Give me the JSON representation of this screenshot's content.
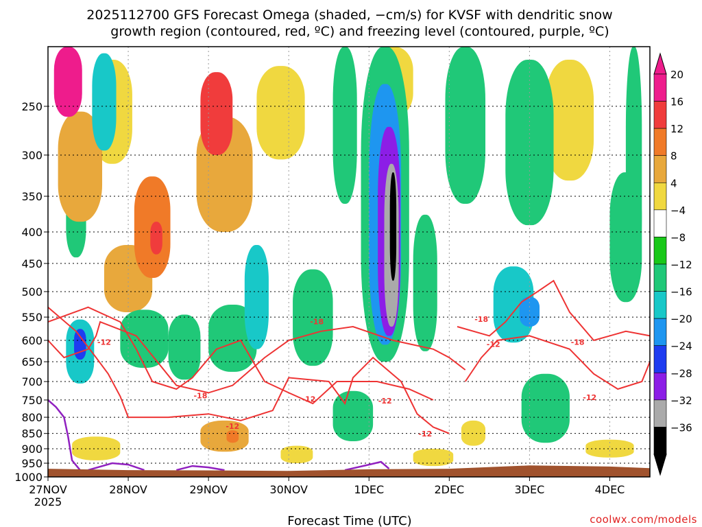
{
  "title": {
    "line1": "2025112700 GFS Forecast Omega (shaded, −cm/s) for KVSF with dendritic snow",
    "line2": "growth region (contoured, red, ºC) and freezing level (contoured, purple, ºC)"
  },
  "credit": "coolwx.com/models",
  "chart_data": {
    "type": "heatmap",
    "title": "2025112700 GFS Forecast Omega (shaded, −cm/s) for KVSF with dendritic snow growth region (contoured, red, ºC) and freezing level (contoured, purple, ºC)",
    "xlabel": "Forecast Time (UTC)",
    "ylabel": "",
    "x_ticks": [
      {
        "label": "27NOV",
        "sub": "2025",
        "day": 0
      },
      {
        "label": "28NOV",
        "day": 1
      },
      {
        "label": "29NOV",
        "day": 2
      },
      {
        "label": "30NOV",
        "day": 3
      },
      {
        "label": "1DEC",
        "day": 4
      },
      {
        "label": "2DEC",
        "day": 5
      },
      {
        "label": "3DEC",
        "day": 6
      },
      {
        "label": "4DEC",
        "day": 7
      }
    ],
    "x_range_days": [
      0,
      7.5
    ],
    "y_ticks": [
      "250",
      "300",
      "350",
      "400",
      "450",
      "500",
      "550",
      "600",
      "650",
      "700",
      "750",
      "800",
      "850",
      "900",
      "950",
      "1000"
    ],
    "y_range_hpa": [
      200,
      1000
    ],
    "y_scale": "log-pressure",
    "colorbar": {
      "labels": [
        "20",
        "16",
        "12",
        "8",
        "4",
        "−4",
        "−8",
        "−12",
        "−16",
        "−20",
        "−24",
        "−28",
        "−32",
        "−36"
      ],
      "colors": [
        "#ee1c8c",
        "#f03c3c",
        "#f07a28",
        "#e8a83c",
        "#f0d840",
        "#ffffff",
        "#19c819",
        "#20c878",
        "#18c8c8",
        "#1e96f0",
        "#1e3cf0",
        "#8c1ee6",
        "#aaaaaa",
        "#000000"
      ]
    },
    "contour_labels": {
      "dendritic": [
        "-18",
        "-12",
        "-18",
        "-12",
        "-12",
        "-12",
        "-18",
        "-12",
        "-12",
        "-18",
        "-12"
      ],
      "freezing_level_color": "#9020c0",
      "dendritic_color": "#ee3333"
    },
    "omega_cells": [
      {
        "t": 0.25,
        "p": 230,
        "dt": 0.35,
        "dp": 60,
        "v": 20
      },
      {
        "t": 0.4,
        "p": 320,
        "dt": 0.55,
        "dp": 130,
        "v": 10
      },
      {
        "t": 0.8,
        "p": 260,
        "dt": 0.5,
        "dp": 100,
        "v": 6
      },
      {
        "t": 1.3,
        "p": 400,
        "dt": 0.45,
        "dp": 150,
        "v": 14
      },
      {
        "t": 1.35,
        "p": 410,
        "dt": 0.15,
        "dp": 50,
        "v": 18
      },
      {
        "t": 1.0,
        "p": 480,
        "dt": 0.6,
        "dp": 120,
        "v": 8
      },
      {
        "t": 2.1,
        "p": 260,
        "dt": 0.4,
        "dp": 80,
        "v": 18
      },
      {
        "t": 2.2,
        "p": 330,
        "dt": 0.7,
        "dp": 140,
        "v": 10
      },
      {
        "t": 2.9,
        "p": 260,
        "dt": 0.6,
        "dp": 90,
        "v": 6
      },
      {
        "t": 0.4,
        "p": 630,
        "dt": 0.35,
        "dp": 150,
        "v": -12
      },
      {
        "t": 0.4,
        "p": 610,
        "dt": 0.15,
        "dp": 70,
        "v": -20
      },
      {
        "t": 0.35,
        "p": 380,
        "dt": 0.25,
        "dp": 120,
        "v": -8
      },
      {
        "t": 0.7,
        "p": 250,
        "dt": 0.3,
        "dp": 90,
        "v": -12
      },
      {
        "t": 1.2,
        "p": 600,
        "dt": 0.6,
        "dp": 130,
        "v": -8
      },
      {
        "t": 1.7,
        "p": 620,
        "dt": 0.4,
        "dp": 150,
        "v": -10
      },
      {
        "t": 2.3,
        "p": 600,
        "dt": 0.6,
        "dp": 150,
        "v": -8
      },
      {
        "t": 2.6,
        "p": 520,
        "dt": 0.3,
        "dp": 200,
        "v": -14
      },
      {
        "t": 3.3,
        "p": 560,
        "dt": 0.5,
        "dp": 200,
        "v": -8
      },
      {
        "t": 3.7,
        "p": 280,
        "dt": 0.3,
        "dp": 160,
        "v": -10
      },
      {
        "t": 4.2,
        "p": 400,
        "dt": 0.6,
        "dp": 500,
        "v": -10
      },
      {
        "t": 4.2,
        "p": 420,
        "dt": 0.4,
        "dp": 380,
        "v": -18
      },
      {
        "t": 4.25,
        "p": 430,
        "dt": 0.28,
        "dp": 320,
        "v": -24
      },
      {
        "t": 4.28,
        "p": 440,
        "dt": 0.18,
        "dp": 260,
        "v": -30
      },
      {
        "t": 4.3,
        "p": 400,
        "dt": 0.08,
        "dp": 160,
        "v": -36
      },
      {
        "t": 3.8,
        "p": 800,
        "dt": 0.5,
        "dp": 150,
        "v": -8
      },
      {
        "t": 4.7,
        "p": 500,
        "dt": 0.3,
        "dp": 250,
        "v": -8
      },
      {
        "t": 5.2,
        "p": 280,
        "dt": 0.5,
        "dp": 160,
        "v": -8
      },
      {
        "t": 5.8,
        "p": 530,
        "dt": 0.5,
        "dp": 150,
        "v": -14
      },
      {
        "t": 6.0,
        "p": 540,
        "dt": 0.25,
        "dp": 60,
        "v": -18
      },
      {
        "t": 6.0,
        "p": 300,
        "dt": 0.6,
        "dp": 180,
        "v": -8
      },
      {
        "t": 6.2,
        "p": 780,
        "dt": 0.6,
        "dp": 200,
        "v": -8
      },
      {
        "t": 7.2,
        "p": 420,
        "dt": 0.4,
        "dp": 200,
        "v": -10
      },
      {
        "t": 7.3,
        "p": 350,
        "dt": 0.2,
        "dp": 300,
        "v": -8
      },
      {
        "t": 0.6,
        "p": 900,
        "dt": 0.6,
        "dp": 80,
        "v": 6
      },
      {
        "t": 2.2,
        "p": 860,
        "dt": 0.6,
        "dp": 100,
        "v": 8
      },
      {
        "t": 2.3,
        "p": 860,
        "dt": 0.15,
        "dp": 40,
        "v": 14
      },
      {
        "t": 3.1,
        "p": 920,
        "dt": 0.4,
        "dp": 60,
        "v": 4
      },
      {
        "t": 4.8,
        "p": 930,
        "dt": 0.5,
        "dp": 60,
        "v": 6
      },
      {
        "t": 4.3,
        "p": 230,
        "dt": 0.5,
        "dp": 60,
        "v": 6
      },
      {
        "t": 6.5,
        "p": 270,
        "dt": 0.6,
        "dp": 120,
        "v": 4
      },
      {
        "t": 7.0,
        "p": 900,
        "dt": 0.6,
        "dp": 60,
        "v": 4
      },
      {
        "t": 5.3,
        "p": 850,
        "dt": 0.3,
        "dp": 80,
        "v": 4
      }
    ]
  }
}
